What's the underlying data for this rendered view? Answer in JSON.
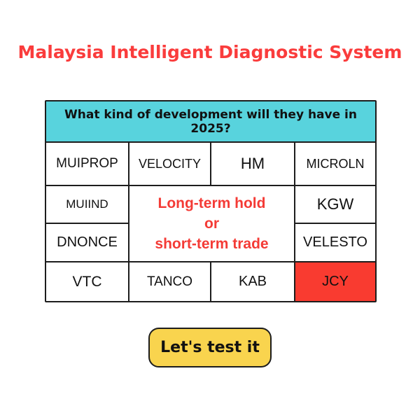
{
  "title": "Malaysia Intelligent Diagnostic System",
  "table": {
    "header": "What kind of development will they have in 2025?",
    "cells": [
      {
        "label": "MUIPROP"
      },
      {
        "label": "VELOCITY"
      },
      {
        "label": "HM"
      },
      {
        "label": "MICROLN"
      },
      {
        "label": "MUIIND"
      },
      {
        "label": "KGW"
      },
      {
        "label": "DNONCE"
      },
      {
        "label": "VELESTO"
      },
      {
        "label": "VTC"
      },
      {
        "label": "TANCO"
      },
      {
        "label": "KAB"
      },
      {
        "label": "JCY",
        "highlighted": true
      }
    ],
    "center_text": [
      "Long-term hold",
      "or",
      "short-term trade"
    ]
  },
  "button": {
    "label": "Let's test it"
  },
  "colors": {
    "title-red": "#FA3C3C",
    "header-teal": "#58D3DD",
    "highlight-red": "#F93B30",
    "accent-red-text": "#F43B36",
    "button-yellow": "#F9D44E",
    "border-dark": "#1d1d1d"
  }
}
